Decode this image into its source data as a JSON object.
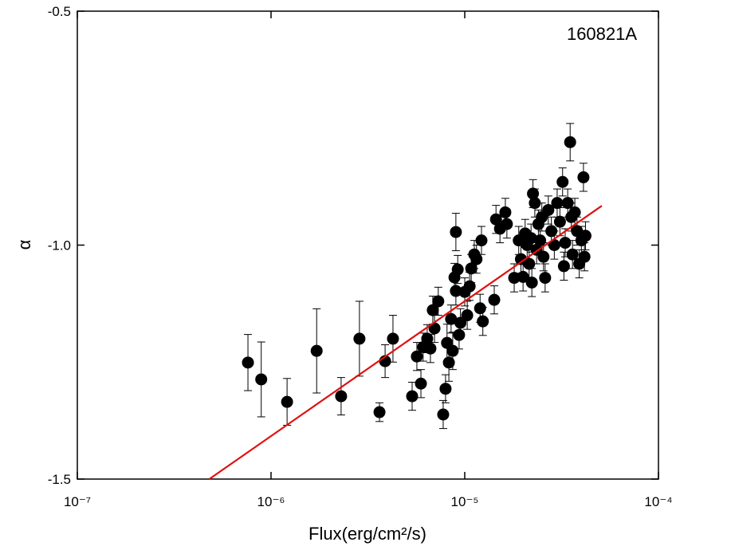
{
  "chart_data": {
    "type": "scatter",
    "annotation": "160821A",
    "x_label": "Flux(erg/cm²/s)",
    "y_label": "α",
    "xscale": "log",
    "xlim": [
      1e-07,
      0.0001
    ],
    "ylim": [
      -1.5,
      -0.5
    ],
    "xticks": [
      {
        "value": 1e-07,
        "label": "10⁻⁷"
      },
      {
        "value": 1e-06,
        "label": "10⁻⁶"
      },
      {
        "value": 1e-05,
        "label": "10⁻⁵"
      },
      {
        "value": 0.0001,
        "label": "10⁻⁴"
      }
    ],
    "yticks": [
      -1.5,
      {
        "value": -1,
        "label": "-1.0"
      },
      -0.5
    ],
    "series": [
      {
        "color": "#000000",
        "x": [
          7.6e-07,
          8.9e-07,
          1.21e-06,
          1.72e-06,
          2.3e-06,
          2.86e-06,
          3.63e-06,
          3.88e-06,
          4.26e-06,
          5.35e-06,
          5.66e-06,
          5.94e-06,
          6.1e-06,
          6.4e-06,
          6.65e-06,
          6.84e-06,
          6.98e-06,
          7.3e-06,
          7.74e-06,
          7.96e-06,
          8.1e-06,
          8.28e-06,
          8.5e-06,
          8.67e-06,
          8.85e-06,
          9e-06,
          9e-06,
          9.2e-06,
          9.35e-06,
          9.5e-06,
          1e-05,
          1.03e-05,
          1.06e-05,
          1.08e-05,
          1.12e-05,
          1.15e-05,
          1.2e-05,
          1.22e-05,
          1.24e-05,
          1.42e-05,
          1.45e-05,
          1.52e-05,
          1.62e-05,
          1.65e-05,
          1.8e-05,
          1.9e-05,
          1.95e-05,
          2e-05,
          2.05e-05,
          2.1e-05,
          2.15e-05,
          2.2e-05,
          2.22e-05,
          2.25e-05,
          2.3e-05,
          2.35e-05,
          2.4e-05,
          2.45e-05,
          2.5e-05,
          2.55e-05,
          2.6e-05,
          2.7e-05,
          2.8e-05,
          2.9e-05,
          3e-05,
          3.1e-05,
          3.2e-05,
          3.25e-05,
          3.3e-05,
          3.4e-05,
          3.5e-05,
          3.55e-05,
          3.6e-05,
          3.7e-05,
          3.8e-05,
          3.9e-05,
          4e-05,
          4.1e-05,
          4.2e-05,
          4.15e-05
        ],
        "values": [
          -1.251,
          -1.287,
          -1.335,
          -1.226,
          -1.323,
          -1.2,
          -1.357,
          -1.248,
          -1.2,
          -1.323,
          -1.238,
          -1.296,
          -1.218,
          -1.2,
          -1.221,
          -1.139,
          -1.178,
          -1.12,
          -1.362,
          -1.307,
          -1.209,
          -1.251,
          -1.158,
          -1.226,
          -1.069,
          -0.972,
          -1.098,
          -1.052,
          -1.192,
          -1.166,
          -1.1,
          -1.15,
          -1.088,
          -1.05,
          -1.02,
          -1.03,
          -1.135,
          -0.99,
          -1.163,
          -1.117,
          -0.945,
          -0.965,
          -0.93,
          -0.955,
          -1.07,
          -0.99,
          -1.03,
          -1.068,
          -0.975,
          -1.0,
          -1.04,
          -0.985,
          -1.08,
          -0.89,
          -0.91,
          -1.01,
          -0.955,
          -0.99,
          -0.94,
          -1.025,
          -1.07,
          -0.925,
          -0.97,
          -1.0,
          -0.91,
          -0.95,
          -0.865,
          -1.045,
          -0.995,
          -0.91,
          -0.78,
          -0.94,
          -1.02,
          -0.93,
          -0.97,
          -1.04,
          -0.99,
          -0.855,
          -0.98,
          -1.025
        ],
        "errors": [
          0.06,
          0.08,
          0.05,
          0.09,
          0.04,
          0.08,
          0.02,
          0.035,
          0.05,
          0.03,
          0.03,
          0.03,
          0.03,
          0.03,
          0.03,
          0.03,
          0.03,
          0.03,
          0.03,
          0.03,
          0.04,
          0.04,
          0.03,
          0.04,
          0.03,
          0.04,
          0.03,
          0.03,
          0.03,
          0.03,
          0.03,
          0.03,
          0.03,
          0.03,
          0.03,
          0.03,
          0.03,
          0.03,
          0.03,
          0.03,
          0.03,
          0.03,
          0.03,
          0.03,
          0.03,
          0.03,
          0.03,
          0.03,
          0.03,
          0.03,
          0.03,
          0.03,
          0.03,
          0.03,
          0.03,
          0.03,
          0.03,
          0.03,
          0.03,
          0.03,
          0.03,
          0.03,
          0.03,
          0.03,
          0.03,
          0.03,
          0.03,
          0.03,
          0.03,
          0.03,
          0.04,
          0.03,
          0.03,
          0.03,
          0.03,
          0.03,
          0.03,
          0.03,
          0.03,
          0.03
        ]
      },
      {
        "type": "line",
        "color": "#e01010",
        "x": [
          4.8e-07,
          5.1e-05
        ],
        "values": [
          -1.5,
          -0.916
        ]
      }
    ]
  }
}
